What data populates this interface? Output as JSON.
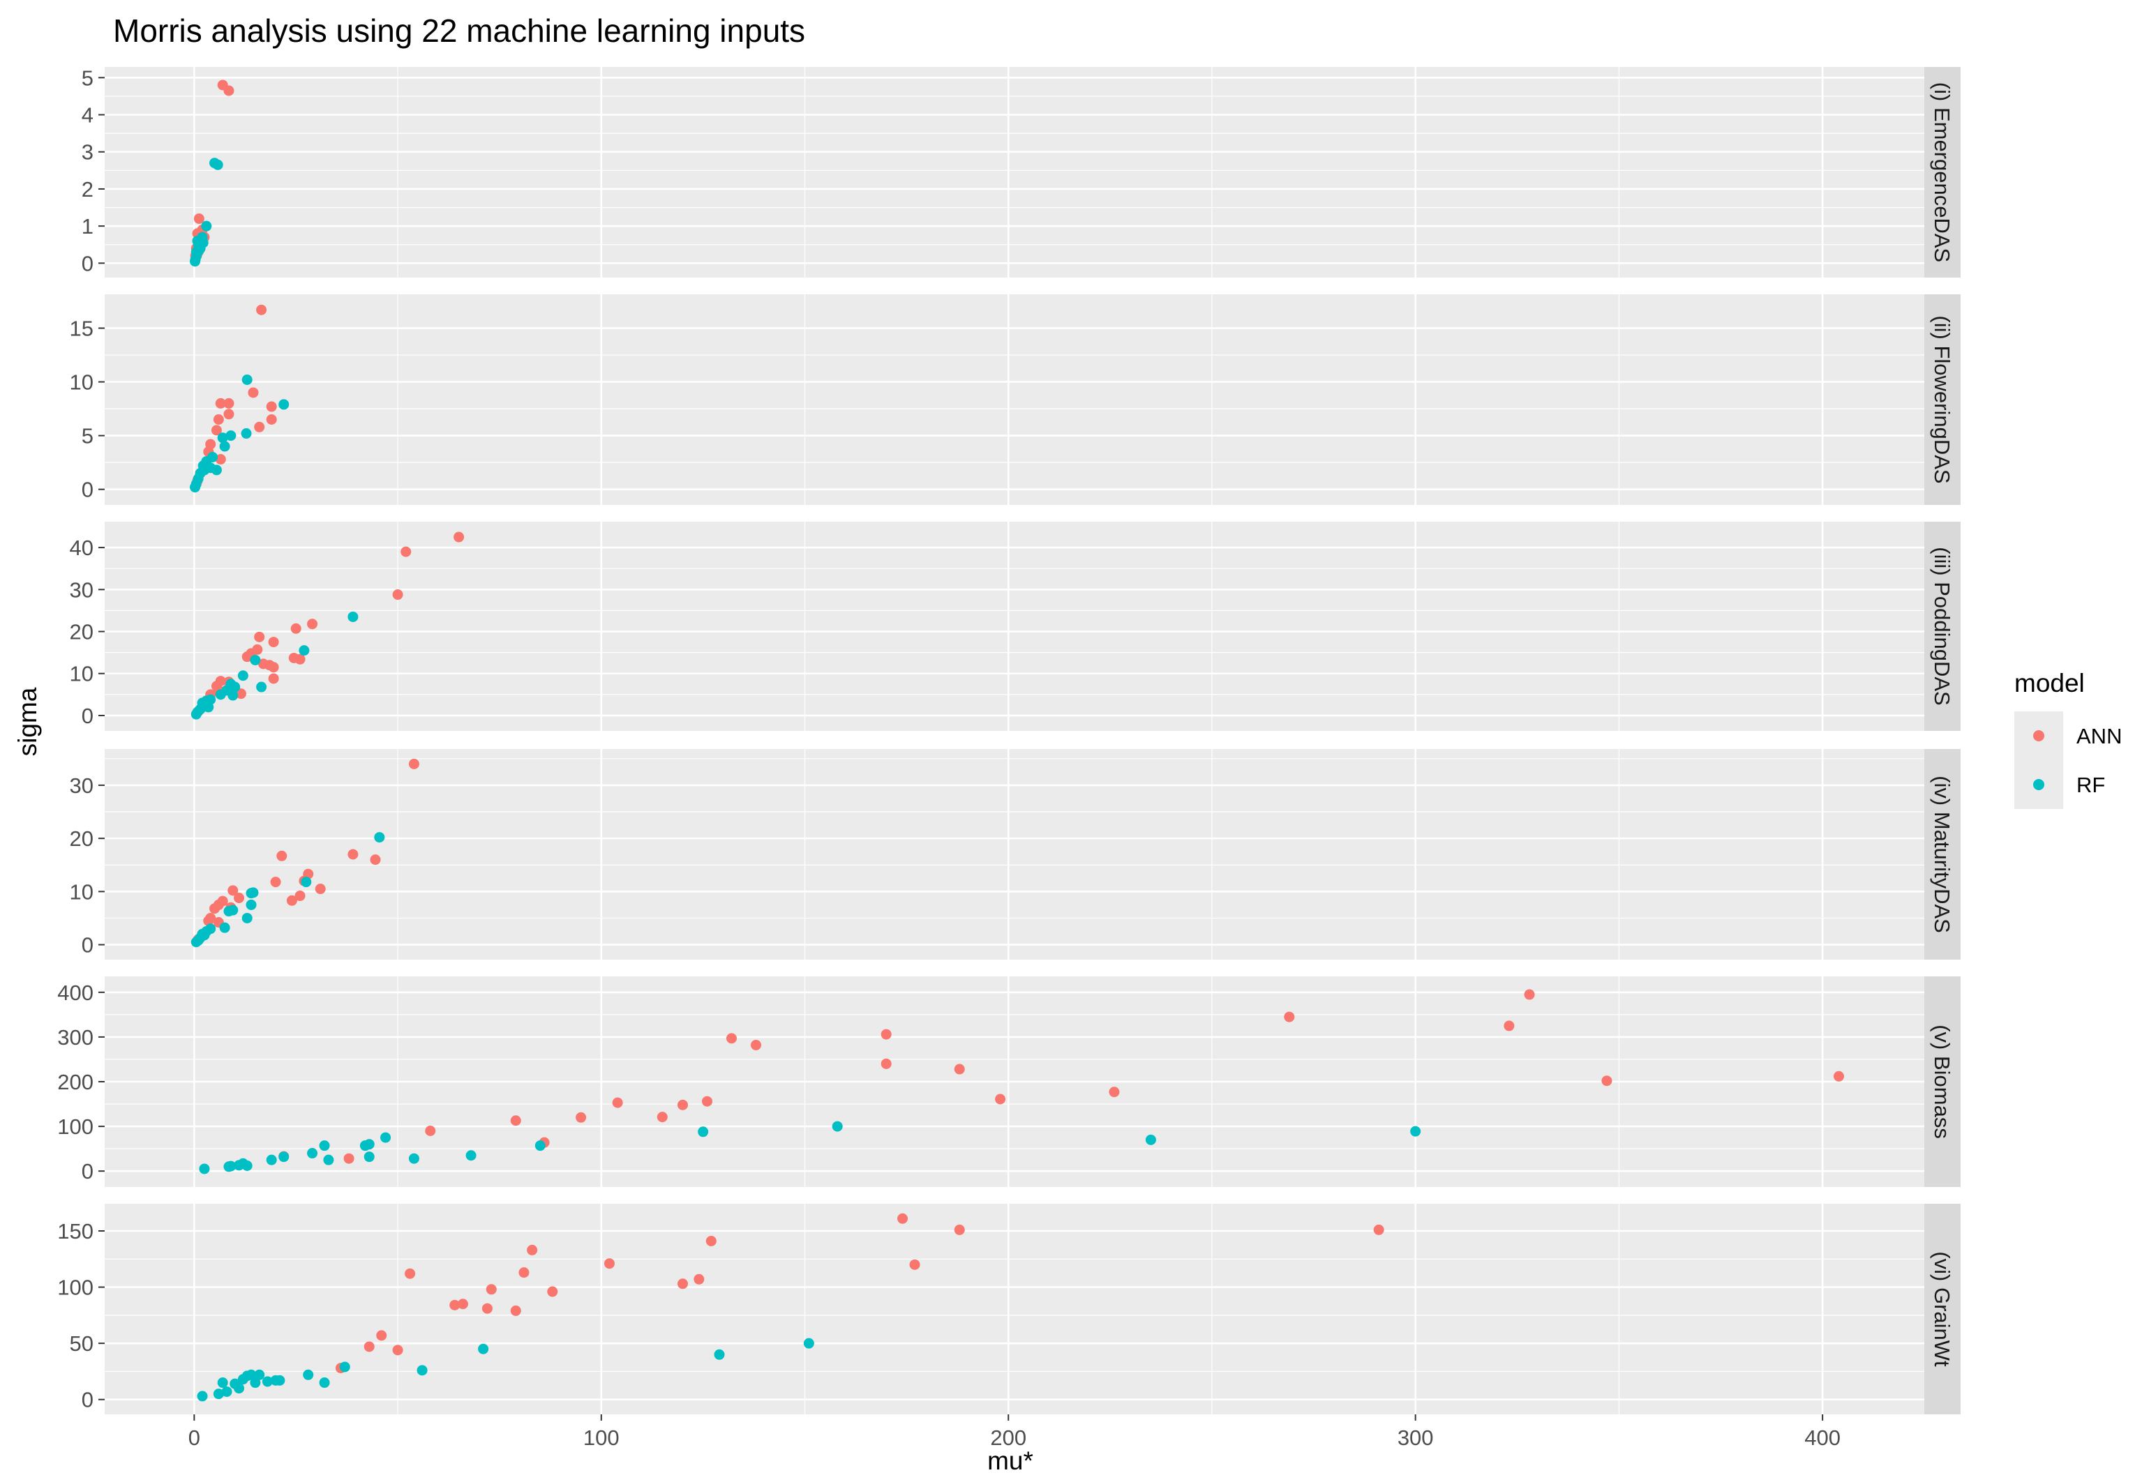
{
  "chart_data": {
    "type": "scatter",
    "title": "Morris analysis using 22 machine learning inputs",
    "xlabel": "mu*",
    "ylabel": "sigma",
    "xlim": [
      -22,
      425
    ],
    "x_ticks": [
      0,
      100,
      200,
      300,
      400
    ],
    "grid": true,
    "legend": {
      "title": "model",
      "position": "right",
      "entries": [
        "ANN",
        "RF"
      ]
    },
    "colors": {
      "ANN": "#F8766D",
      "RF": "#00BFC4",
      "panel_bg": "#EBEBEB",
      "strip_bg": "#D9D9D9",
      "grid": "#FFFFFF"
    },
    "panels": [
      {
        "label": "(i) EmergenceDAS",
        "ylim": [
          -0.2,
          5.1
        ],
        "y_ticks": [
          0,
          1,
          2,
          3,
          4,
          5
        ],
        "series": [
          {
            "name": "ANN",
            "points": [
              [
                7.0,
                4.8
              ],
              [
                8.5,
                4.65
              ],
              [
                0.8,
                0.8
              ],
              [
                1.2,
                1.2
              ],
              [
                2.0,
                0.9
              ],
              [
                1.5,
                0.6
              ],
              [
                0.5,
                0.4
              ],
              [
                1.0,
                0.3
              ],
              [
                2.5,
                0.7
              ],
              [
                0.3,
                0.2
              ]
            ]
          },
          {
            "name": "RF",
            "points": [
              [
                5.0,
                2.7
              ],
              [
                5.8,
                2.65
              ],
              [
                3.0,
                1.0
              ],
              [
                2.0,
                0.7
              ],
              [
                1.0,
                0.5
              ],
              [
                0.5,
                0.3
              ],
              [
                0.3,
                0.1
              ],
              [
                1.5,
                0.4
              ],
              [
                0.8,
                0.6
              ],
              [
                0.2,
                0.05
              ],
              [
                0.6,
                0.2
              ],
              [
                1.2,
                0.35
              ],
              [
                2.2,
                0.55
              ]
            ]
          }
        ]
      },
      {
        "label": "(ii) FloweringDAS",
        "ylim": [
          -0.8,
          17.5
        ],
        "y_ticks": [
          0,
          5,
          10,
          15
        ],
        "series": [
          {
            "name": "ANN",
            "points": [
              [
                16.5,
                16.7
              ],
              [
                6.5,
                8.0
              ],
              [
                8.5,
                8.0
              ],
              [
                8.5,
                7.0
              ],
              [
                6.0,
                6.5
              ],
              [
                5.5,
                5.5
              ],
              [
                14.5,
                9.0
              ],
              [
                19.0,
                7.7
              ],
              [
                19.0,
                6.5
              ],
              [
                16.0,
                5.8
              ],
              [
                4.0,
                4.2
              ],
              [
                3.5,
                3.5
              ],
              [
                6.5,
                2.8
              ],
              [
                2.5,
                2.0
              ],
              [
                1.5,
                1.5
              ],
              [
                0.8,
                0.8
              ]
            ]
          },
          {
            "name": "RF",
            "points": [
              [
                13.0,
                10.2
              ],
              [
                22.0,
                7.9
              ],
              [
                12.8,
                5.2
              ],
              [
                9.0,
                5.0
              ],
              [
                7.0,
                4.8
              ],
              [
                7.5,
                4.0
              ],
              [
                4.5,
                3.0
              ],
              [
                3.0,
                2.6
              ],
              [
                4.0,
                2.0
              ],
              [
                2.5,
                1.8
              ],
              [
                1.5,
                1.5
              ],
              [
                2.2,
                2.2
              ],
              [
                1.0,
                1.0
              ],
              [
                0.5,
                0.5
              ],
              [
                0.2,
                0.2
              ],
              [
                5.5,
                1.8
              ]
            ]
          }
        ]
      },
      {
        "label": "(iii) PoddingDAS",
        "ylim": [
          -2.0,
          44.5
        ],
        "y_ticks": [
          0,
          10,
          20,
          30,
          40
        ],
        "series": [
          {
            "name": "ANN",
            "points": [
              [
                65.0,
                42.5
              ],
              [
                52.0,
                39.0
              ],
              [
                50.0,
                28.8
              ],
              [
                29.0,
                21.8
              ],
              [
                25.0,
                20.7
              ],
              [
                16.0,
                18.7
              ],
              [
                19.5,
                17.5
              ],
              [
                15.5,
                15.7
              ],
              [
                14.0,
                14.8
              ],
              [
                13.0,
                14.0
              ],
              [
                26.0,
                13.4
              ],
              [
                24.5,
                13.7
              ],
              [
                17.0,
                12.3
              ],
              [
                18.5,
                12.0
              ],
              [
                19.5,
                11.5
              ],
              [
                19.5,
                8.8
              ],
              [
                8.5,
                8.0
              ],
              [
                6.5,
                8.2
              ],
              [
                5.5,
                7.0
              ],
              [
                6.0,
                6.0
              ],
              [
                11.5,
                5.2
              ],
              [
                4.0,
                5.0
              ],
              [
                3.0,
                3.5
              ],
              [
                1.0,
                1.0
              ],
              [
                2.0,
                2.0
              ]
            ]
          },
          {
            "name": "RF",
            "points": [
              [
                39.0,
                23.5
              ],
              [
                27.0,
                15.5
              ],
              [
                15.0,
                13.2
              ],
              [
                12.0,
                9.5
              ],
              [
                9.0,
                7.5
              ],
              [
                10.0,
                6.8
              ],
              [
                16.5,
                6.8
              ],
              [
                8.0,
                6.0
              ],
              [
                6.5,
                5.0
              ],
              [
                9.5,
                4.8
              ],
              [
                4.0,
                3.8
              ],
              [
                3.0,
                3.5
              ],
              [
                2.0,
                3.0
              ],
              [
                1.5,
                1.5
              ],
              [
                0.8,
                0.8
              ],
              [
                0.5,
                0.3
              ],
              [
                3.5,
                2.0
              ]
            ]
          }
        ]
      },
      {
        "label": "(iv) MaturityDAS",
        "ylim": [
          -1.5,
          35.5
        ],
        "y_ticks": [
          0,
          10,
          20,
          30
        ],
        "series": [
          {
            "name": "ANN",
            "points": [
              [
                54.0,
                34.0
              ],
              [
                39.0,
                17.0
              ],
              [
                21.5,
                16.7
              ],
              [
                44.5,
                16.0
              ],
              [
                28.0,
                13.3
              ],
              [
                27.0,
                12.0
              ],
              [
                20.0,
                11.8
              ],
              [
                31.0,
                10.5
              ],
              [
                9.5,
                10.2
              ],
              [
                11.0,
                8.8
              ],
              [
                26.0,
                9.2
              ],
              [
                24.0,
                8.3
              ],
              [
                7.0,
                8.2
              ],
              [
                6.0,
                7.5
              ],
              [
                9.0,
                7.0
              ],
              [
                5.0,
                6.8
              ],
              [
                4.0,
                5.0
              ],
              [
                3.5,
                4.5
              ],
              [
                6.0,
                4.2
              ],
              [
                2.0,
                2.0
              ],
              [
                1.0,
                1.0
              ]
            ]
          },
          {
            "name": "RF",
            "points": [
              [
                45.5,
                20.2
              ],
              [
                27.5,
                11.8
              ],
              [
                14.5,
                9.8
              ],
              [
                14.0,
                9.7
              ],
              [
                9.5,
                6.5
              ],
              [
                8.5,
                6.3
              ],
              [
                14.0,
                7.5
              ],
              [
                13.0,
                5.0
              ],
              [
                7.5,
                3.2
              ],
              [
                4.0,
                3.0
              ],
              [
                3.0,
                2.5
              ],
              [
                2.0,
                2.0
              ],
              [
                1.5,
                1.3
              ],
              [
                1.0,
                0.8
              ],
              [
                0.5,
                0.5
              ],
              [
                2.5,
                1.8
              ]
            ]
          }
        ]
      },
      {
        "label": "(v) Biomass",
        "ylim": [
          -20,
          420
        ],
        "y_ticks": [
          0,
          100,
          200,
          300,
          400
        ],
        "series": [
          {
            "name": "ANN",
            "points": [
              [
                328,
                395
              ],
              [
                269,
                345
              ],
              [
                323,
                325
              ],
              [
                132,
                297
              ],
              [
                170,
                306
              ],
              [
                138,
                282
              ],
              [
                170,
                240
              ],
              [
                188,
                228
              ],
              [
                347,
                202
              ],
              [
                404,
                212
              ],
              [
                198,
                161
              ],
              [
                226,
                177
              ],
              [
                104,
                153
              ],
              [
                120,
                148
              ],
              [
                126,
                156
              ],
              [
                95,
                120
              ],
              [
                115,
                121
              ],
              [
                79,
                113
              ],
              [
                58,
                90
              ],
              [
                86,
                64
              ],
              [
                22,
                33
              ],
              [
                38,
                28
              ]
            ]
          },
          {
            "name": "RF",
            "points": [
              [
                300,
                89
              ],
              [
                235,
                70
              ],
              [
                158,
                100
              ],
              [
                125,
                88
              ],
              [
                68,
                35
              ],
              [
                47,
                75
              ],
              [
                43,
                60
              ],
              [
                42,
                57
              ],
              [
                32,
                57
              ],
              [
                29,
                40
              ],
              [
                22,
                32
              ],
              [
                19,
                25
              ],
              [
                12,
                17
              ],
              [
                11,
                13
              ],
              [
                8.5,
                10
              ],
              [
                9,
                11
              ],
              [
                13,
                12
              ],
              [
                2.5,
                5
              ],
              [
                54,
                28
              ],
              [
                85,
                57
              ],
              [
                33,
                25
              ],
              [
                43,
                32
              ]
            ]
          }
        ]
      },
      {
        "label": "(vi) GrainWt",
        "ylim": [
          -7,
          168
        ],
        "y_ticks": [
          0,
          50,
          100,
          150
        ],
        "series": [
          {
            "name": "ANN",
            "points": [
              [
                174,
                161
              ],
              [
                188,
                151
              ],
              [
                291,
                151
              ],
              [
                127,
                141
              ],
              [
                83,
                133
              ],
              [
                102,
                121
              ],
              [
                81,
                113
              ],
              [
                53,
                112
              ],
              [
                124,
                107
              ],
              [
                120,
                103
              ],
              [
                177,
                120
              ],
              [
                88,
                96
              ],
              [
                73,
                98
              ],
              [
                64,
                84
              ],
              [
                66,
                85
              ],
              [
                72,
                81
              ],
              [
                79,
                79
              ],
              [
                46,
                57
              ],
              [
                43,
                47
              ],
              [
                50,
                44
              ],
              [
                36,
                28
              ]
            ]
          },
          {
            "name": "RF",
            "points": [
              [
                151,
                50
              ],
              [
                71,
                45
              ],
              [
                129,
                40
              ],
              [
                56,
                26
              ],
              [
                37,
                29
              ],
              [
                28,
                22
              ],
              [
                32,
                15
              ],
              [
                20,
                17
              ],
              [
                18,
                16
              ],
              [
                16,
                22
              ],
              [
                14,
                22
              ],
              [
                13,
                21
              ],
              [
                12,
                18
              ],
              [
                10,
                14
              ],
              [
                7,
                15
              ],
              [
                11,
                10
              ],
              [
                15,
                15
              ],
              [
                6,
                5
              ],
              [
                8,
                7
              ],
              [
                2,
                3
              ],
              [
                21,
                17
              ]
            ]
          }
        ]
      }
    ]
  }
}
